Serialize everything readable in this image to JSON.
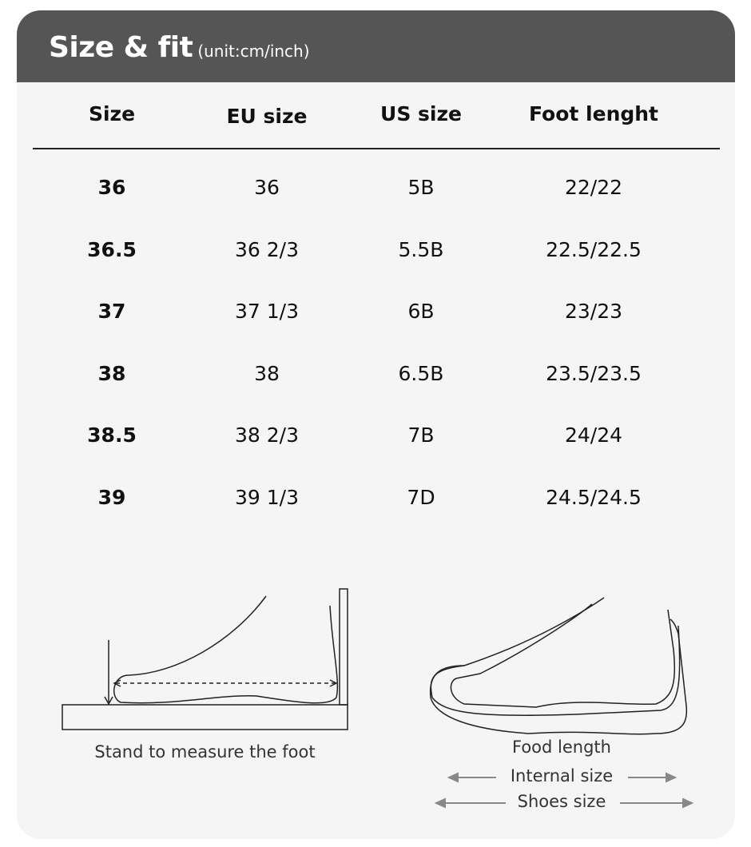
{
  "header": {
    "title": "Size & fit",
    "unit": "(unit:cm/inch)",
    "background": "#555555"
  },
  "table": {
    "columns": [
      "Size",
      "EU size",
      "US size",
      "Foot lenght"
    ],
    "rows": [
      [
        "36",
        "36",
        "5B",
        "22/22"
      ],
      [
        "36.5",
        "36 2/3",
        "5.5B",
        "22.5/22.5"
      ],
      [
        "37",
        "37 1/3",
        "6B",
        "23/23"
      ],
      [
        "38",
        "38",
        "6.5B",
        "23.5/23.5"
      ],
      [
        "38.5",
        "38 2/3",
        "7B",
        "24/24"
      ],
      [
        "39",
        "39 1/3",
        "7D",
        "24.5/24.5"
      ]
    ]
  },
  "illustrations": {
    "measure_caption": "Stand to measure the foot",
    "shoe_labels": {
      "foot": "Food length",
      "internal": "Internal size",
      "shoes": "Shoes size"
    }
  }
}
